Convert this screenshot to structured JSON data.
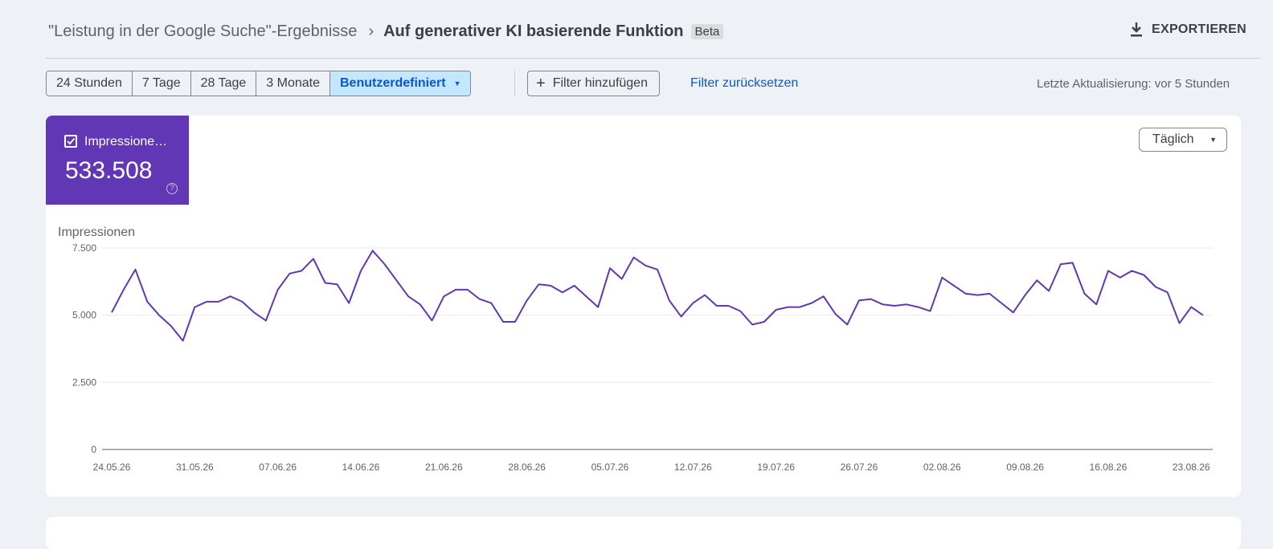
{
  "header": {
    "breadcrumb_parent": "\"Leistung in der Google Suche\"-Ergebnisse",
    "breadcrumb_separator": "›",
    "breadcrumb_current": "Auf generativer KI basierende Funktion",
    "badge": "Beta",
    "export_label": "EXPORTIEREN",
    "export_icon": "download-icon"
  },
  "toolbar": {
    "ranges": [
      "24 Stunden",
      "7 Tage",
      "28 Tage",
      "3 Monate"
    ],
    "custom_range": "Benutzerdefiniert",
    "add_filter": "Filter hinzufügen",
    "reset_filter": "Filter zurücksetzen",
    "last_update": "Letzte Aktualisierung: vor 5 Stunden"
  },
  "metric": {
    "label": "Impressione…",
    "value": "533.508",
    "help_icon": "help-circle-icon",
    "color": "#6237b5"
  },
  "interval": {
    "label": "Täglich"
  },
  "chart_data": {
    "type": "line",
    "ylabel": "Impressionen",
    "ylim": [
      0,
      7500
    ],
    "yticks": [
      "0",
      "2.500",
      "5.000",
      "7.500"
    ],
    "xticks": [
      "24.05.26",
      "31.05.26",
      "07.06.26",
      "14.06.26",
      "21.06.26",
      "28.06.26",
      "05.07.26",
      "12.07.26",
      "19.07.26",
      "26.07.26",
      "02.08.26",
      "09.08.26",
      "16.08.26",
      "23.08.26"
    ],
    "grid": true,
    "series": [
      {
        "color": "#6237b5",
        "values": [
          5100,
          5950,
          6700,
          5500,
          5000,
          4600,
          4050,
          5300,
          5500,
          5500,
          5700,
          5500,
          5100,
          4800,
          5950,
          6550,
          6650,
          7100,
          6200,
          6150,
          5450,
          6650,
          7400,
          6900,
          6300,
          5700,
          5400,
          4800,
          5700,
          5950,
          5950,
          5600,
          5450,
          4750,
          4750,
          5550,
          6150,
          6100,
          5850,
          6100,
          5700,
          5300,
          6750,
          6350,
          7150,
          6850,
          6700,
          5550,
          4950,
          5450,
          5750,
          5350,
          5350,
          5150,
          4650,
          4750,
          5200,
          5300,
          5300,
          5450,
          5700,
          5050,
          4650,
          5550,
          5600,
          5400,
          5350,
          5400,
          5300,
          5150,
          6400,
          6100,
          5800,
          5750,
          5800,
          5450,
          5100,
          5750,
          6300,
          5900,
          6900,
          6950,
          5800,
          5400,
          6650,
          6400,
          6650,
          6500,
          6050,
          5850,
          4700,
          5300,
          5000
        ]
      }
    ]
  }
}
